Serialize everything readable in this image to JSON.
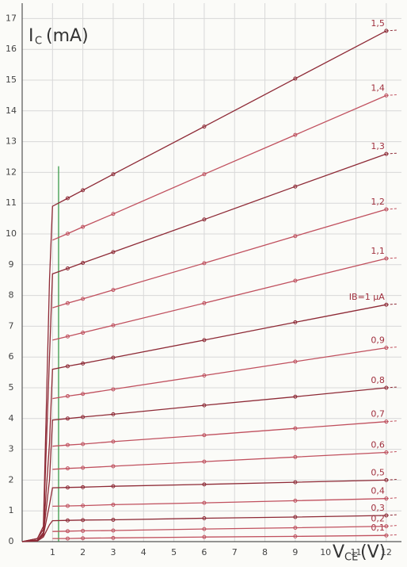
{
  "chart_data": {
    "type": "line",
    "y_label": {
      "main": "I",
      "sub": "C",
      "unit": "(mA)"
    },
    "x_label": {
      "main": "V",
      "sub": "CE",
      "unit": "(V)"
    },
    "x": [
      0,
      0.5,
      0.7,
      0.9,
      1,
      1.5,
      2,
      3,
      6,
      9,
      12
    ],
    "series": [
      {
        "name": "0,1",
        "color": "#c0505e",
        "values": [
          null,
          null,
          null,
          null,
          0.1,
          0.1,
          0.11,
          0.12,
          0.15,
          0.17,
          0.2
        ]
      },
      {
        "name": "0,2",
        "color": "#c0505e",
        "values": [
          null,
          null,
          null,
          null,
          0.33,
          0.34,
          0.35,
          0.36,
          0.41,
          0.45,
          0.5
        ]
      },
      {
        "name": "0,3",
        "color": "#8e2a36",
        "values": [
          0,
          0.02,
          0.15,
          0.55,
          0.68,
          0.69,
          0.7,
          0.71,
          0.76,
          0.8,
          0.85
        ]
      },
      {
        "name": "0,4",
        "color": "#c0505e",
        "values": [
          null,
          null,
          null,
          null,
          1.15,
          1.16,
          1.17,
          1.2,
          1.26,
          1.33,
          1.4
        ]
      },
      {
        "name": "0,5",
        "color": "#8e2a36",
        "values": [
          0,
          0.05,
          0.2,
          1.2,
          1.75,
          1.76,
          1.77,
          1.8,
          1.86,
          1.93,
          2.0
        ]
      },
      {
        "name": "0,6",
        "color": "#c0505e",
        "values": [
          null,
          null,
          null,
          null,
          2.35,
          2.38,
          2.4,
          2.45,
          2.6,
          2.75,
          2.9
        ]
      },
      {
        "name": "0,7",
        "color": "#c0505e",
        "values": [
          null,
          null,
          null,
          null,
          3.1,
          3.14,
          3.17,
          3.25,
          3.46,
          3.68,
          3.9
        ]
      },
      {
        "name": "0,8",
        "color": "#8e2a36",
        "values": [
          0,
          0.05,
          0.25,
          2,
          3.95,
          4.0,
          4.05,
          4.14,
          4.43,
          4.71,
          5.0
        ]
      },
      {
        "name": "0,9",
        "color": "#c0505e",
        "values": [
          null,
          null,
          null,
          null,
          4.65,
          4.73,
          4.8,
          4.95,
          5.4,
          5.85,
          6.3
        ]
      },
      {
        "name": "IB=1 µA",
        "color": "#8e2a36",
        "values": [
          0,
          0.05,
          0.3,
          3.2,
          5.6,
          5.7,
          5.79,
          5.98,
          6.55,
          7.13,
          7.7
        ]
      },
      {
        "name": "1,1",
        "color": "#c0505e",
        "values": [
          null,
          null,
          null,
          null,
          6.55,
          6.67,
          6.79,
          7.03,
          7.75,
          8.48,
          9.2
        ]
      },
      {
        "name": "1,2",
        "color": "#c0505e",
        "values": [
          null,
          null,
          null,
          null,
          7.6,
          7.75,
          7.89,
          8.18,
          9.05,
          9.93,
          10.8
        ]
      },
      {
        "name": "1,3",
        "color": "#8e2a36",
        "values": [
          0,
          0.1,
          0.4,
          6,
          8.7,
          8.88,
          9.06,
          9.41,
          10.47,
          11.54,
          12.6
        ]
      },
      {
        "name": "1,4",
        "color": "#c0505e",
        "values": [
          null,
          null,
          null,
          null,
          9.8,
          10.01,
          10.23,
          10.65,
          11.94,
          13.22,
          14.5
        ]
      },
      {
        "name": "1,5",
        "color": "#8e2a36",
        "values": [
          0,
          0.1,
          0.5,
          8.5,
          10.9,
          11.16,
          11.42,
          11.94,
          13.49,
          15.05,
          16.6
        ]
      }
    ],
    "reference_line_x": 1.2,
    "reference_line_top": 12.2,
    "reference_color": "#3a9a4a",
    "xlim": [
      0,
      12.5
    ],
    "ylim": [
      0,
      17.5
    ],
    "xticks": [
      1,
      2,
      3,
      4,
      5,
      6,
      7,
      8,
      9,
      10,
      11,
      12
    ],
    "yticks": [
      0,
      1,
      2,
      3,
      4,
      5,
      6,
      7,
      8,
      9,
      10,
      11,
      12,
      13,
      14,
      15,
      16,
      17
    ],
    "grid": true
  }
}
